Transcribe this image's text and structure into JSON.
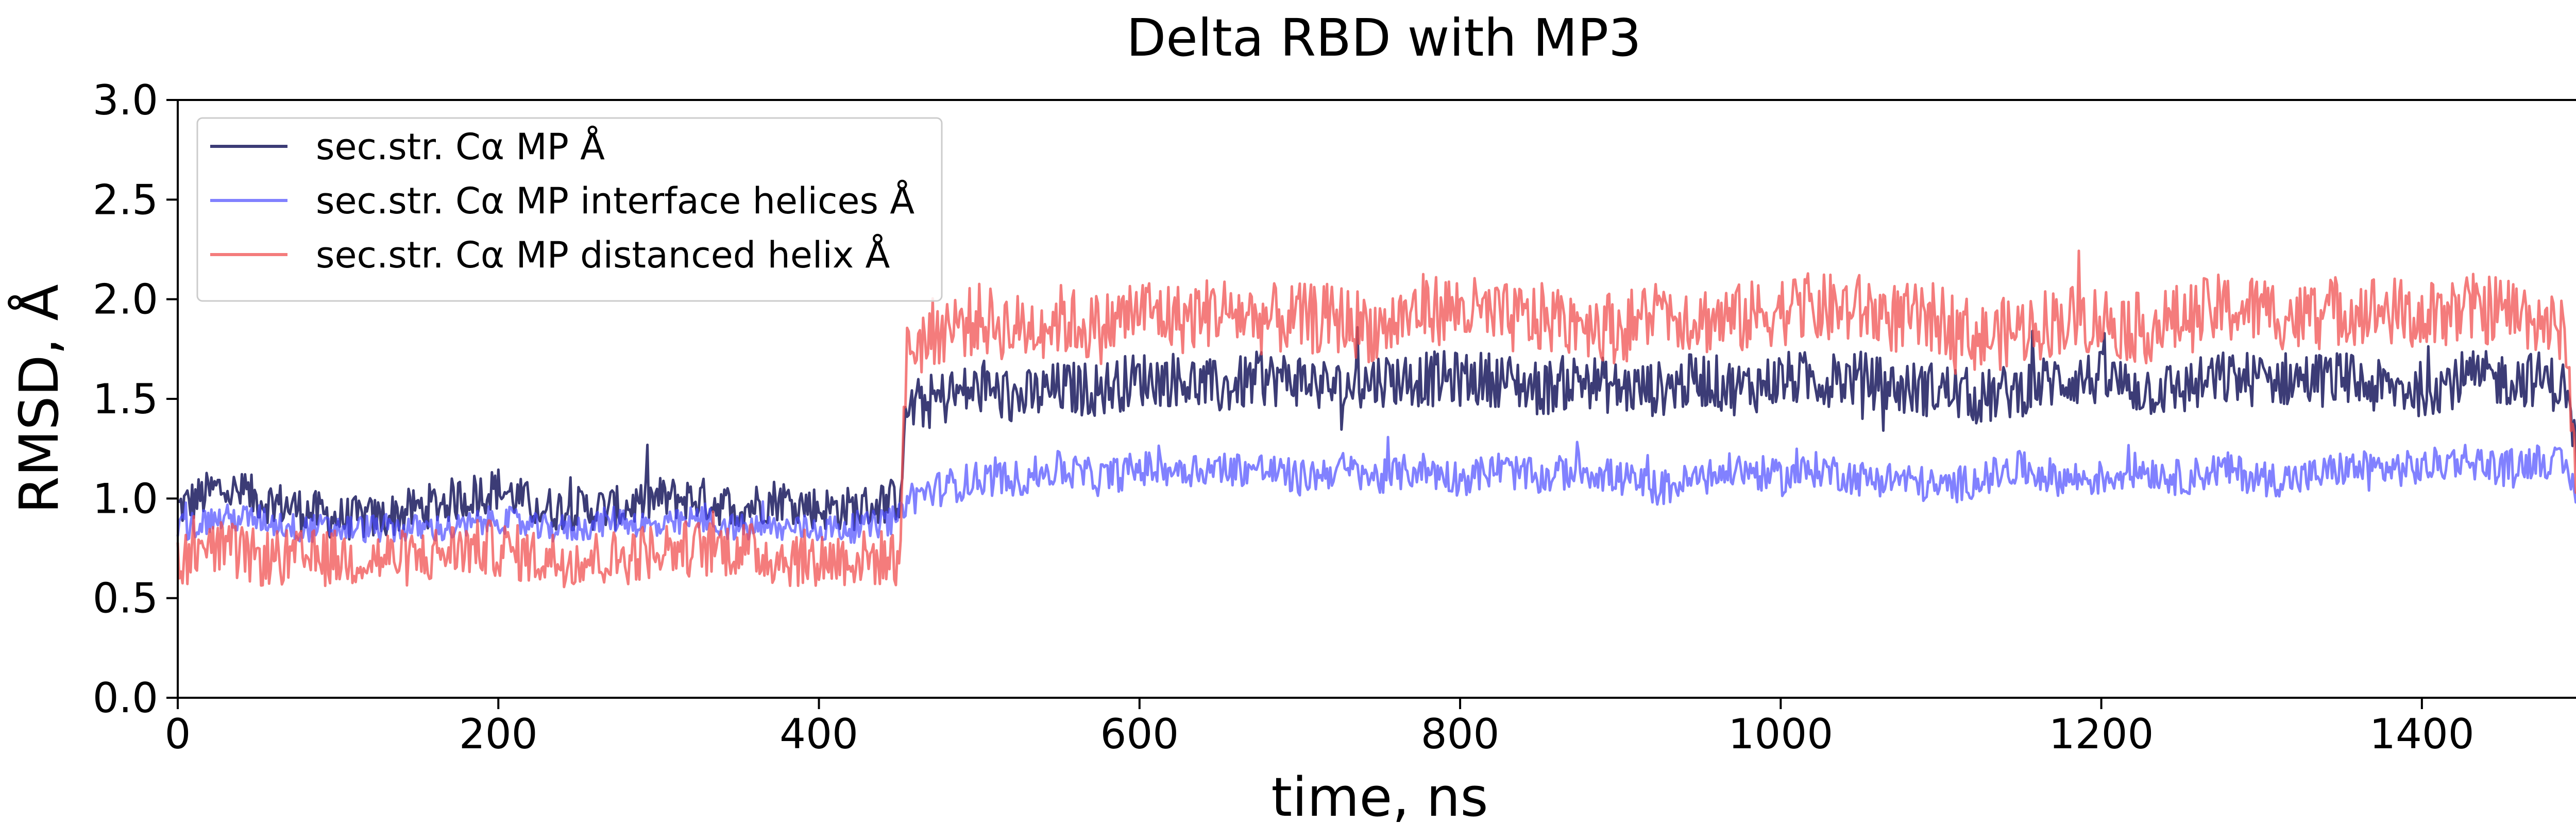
{
  "chart_data": {
    "type": "line",
    "title": "Delta RBD with MP3",
    "xlabel": "time, ns",
    "ylabel": "RMSD, Å",
    "xlim": [
      0,
      1500
    ],
    "ylim": [
      0.0,
      3.0
    ],
    "xticks": [
      "0",
      "200",
      "400",
      "600",
      "800",
      "1000",
      "1200",
      "1400"
    ],
    "yticks": [
      "0.0",
      "0.5",
      "1.0",
      "1.5",
      "2.0",
      "2.5",
      "3.0"
    ],
    "grid": false,
    "legend_position": "upper-left",
    "series": [
      {
        "name": "sec.str. Cα MP Å",
        "color": "#1a1a5e",
        "opacity": 0.85,
        "x": [
          0,
          25,
          50,
          75,
          100,
          125,
          150,
          175,
          200,
          225,
          250,
          275,
          300,
          325,
          350,
          375,
          400,
          425,
          450,
          455,
          475,
          500,
          525,
          550,
          575,
          600,
          625,
          650,
          675,
          700,
          725,
          750,
          775,
          800,
          825,
          850,
          875,
          900,
          925,
          950,
          975,
          1000,
          1025,
          1050,
          1075,
          1100,
          1125,
          1150,
          1175,
          1200,
          1225,
          1250,
          1275,
          1300,
          1325,
          1350,
          1375,
          1400,
          1425,
          1450,
          1475,
          1490,
          1500
        ],
        "y": [
          0.95,
          1.05,
          1.0,
          0.95,
          0.9,
          0.9,
          0.95,
          1.0,
          1.05,
          0.95,
          0.95,
          0.95,
          1.0,
          1.0,
          0.95,
          1.0,
          0.95,
          0.95,
          1.0,
          1.45,
          1.5,
          1.55,
          1.5,
          1.55,
          1.55,
          1.6,
          1.6,
          1.55,
          1.6,
          1.6,
          1.55,
          1.6,
          1.6,
          1.6,
          1.6,
          1.55,
          1.6,
          1.55,
          1.55,
          1.6,
          1.55,
          1.6,
          1.6,
          1.6,
          1.55,
          1.55,
          1.5,
          1.55,
          1.6,
          1.6,
          1.55,
          1.55,
          1.6,
          1.6,
          1.6,
          1.6,
          1.55,
          1.55,
          1.6,
          1.6,
          1.6,
          1.55,
          1.05
        ]
      },
      {
        "name": "sec.str. Cα MP interface helices Å",
        "color": "#4b4bff",
        "opacity": 0.7,
        "x": [
          0,
          25,
          50,
          75,
          100,
          125,
          150,
          175,
          200,
          225,
          250,
          275,
          300,
          325,
          350,
          375,
          400,
          425,
          450,
          455,
          475,
          500,
          525,
          550,
          575,
          600,
          625,
          650,
          675,
          700,
          725,
          750,
          775,
          800,
          825,
          850,
          875,
          900,
          925,
          950,
          975,
          1000,
          1025,
          1050,
          1075,
          1100,
          1125,
          1150,
          1175,
          1200,
          1225,
          1250,
          1275,
          1300,
          1325,
          1350,
          1375,
          1400,
          1425,
          1450,
          1475,
          1490,
          1500
        ],
        "y": [
          0.85,
          0.9,
          0.9,
          0.85,
          0.85,
          0.85,
          0.85,
          0.85,
          0.9,
          0.85,
          0.85,
          0.9,
          0.85,
          0.9,
          0.85,
          0.85,
          0.85,
          0.85,
          0.9,
          1.0,
          1.05,
          1.1,
          1.1,
          1.15,
          1.1,
          1.15,
          1.15,
          1.15,
          1.15,
          1.1,
          1.15,
          1.1,
          1.15,
          1.1,
          1.15,
          1.1,
          1.15,
          1.1,
          1.05,
          1.1,
          1.15,
          1.1,
          1.15,
          1.1,
          1.1,
          1.05,
          1.1,
          1.15,
          1.1,
          1.1,
          1.15,
          1.1,
          1.15,
          1.1,
          1.1,
          1.15,
          1.15,
          1.15,
          1.2,
          1.15,
          1.2,
          1.15,
          0.95
        ]
      },
      {
        "name": "sec.str. Cα MP distanced helix Å",
        "color": "#f05050",
        "opacity": 0.75,
        "x": [
          0,
          25,
          50,
          75,
          100,
          125,
          150,
          175,
          200,
          225,
          250,
          275,
          300,
          325,
          350,
          375,
          400,
          425,
          450,
          455,
          475,
          500,
          525,
          550,
          575,
          600,
          625,
          650,
          675,
          700,
          725,
          750,
          775,
          800,
          825,
          850,
          875,
          900,
          925,
          950,
          975,
          1000,
          1025,
          1050,
          1075,
          1100,
          1125,
          1150,
          1175,
          1200,
          1225,
          1250,
          1275,
          1300,
          1325,
          1350,
          1375,
          1400,
          1425,
          1450,
          1475,
          1490,
          1500
        ],
        "y": [
          0.7,
          0.75,
          0.7,
          0.7,
          0.7,
          0.7,
          0.7,
          0.75,
          0.75,
          0.7,
          0.7,
          0.7,
          0.75,
          0.75,
          0.75,
          0.7,
          0.7,
          0.7,
          0.7,
          1.75,
          1.85,
          1.9,
          1.85,
          1.9,
          1.85,
          1.95,
          1.9,
          1.95,
          1.9,
          1.9,
          1.9,
          1.85,
          1.95,
          1.95,
          1.9,
          1.9,
          1.9,
          1.85,
          1.95,
          1.9,
          1.9,
          1.95,
          1.95,
          1.95,
          1.9,
          1.9,
          1.8,
          1.85,
          1.9,
          1.9,
          1.85,
          1.9,
          1.95,
          1.95,
          1.9,
          1.95,
          1.95,
          1.9,
          1.95,
          1.95,
          1.9,
          1.8,
          0.65
        ]
      }
    ]
  }
}
